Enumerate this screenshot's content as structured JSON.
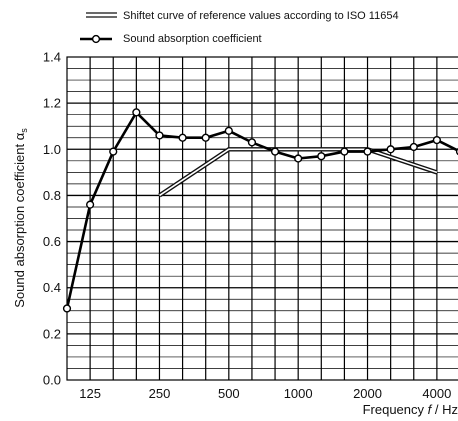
{
  "chart_data": {
    "type": "line",
    "title": "",
    "xlabel": "Frequency",
    "xlabel_symbol": "f",
    "xlabel_unit": " / Hz",
    "ylabel": "Sound absorption coefficient α",
    "ylabel_sub": "s",
    "ylim": [
      0,
      1.4
    ],
    "yticks": [
      "0.0",
      "0.2",
      "0.4",
      "0.6",
      "0.8",
      "1.0",
      "1.2",
      "1.4"
    ],
    "x_scale": "log (third-octave bands)",
    "x_categories": [
      "100",
      "125",
      "160",
      "200",
      "250",
      "315",
      "400",
      "500",
      "630",
      "800",
      "1000",
      "1250",
      "1600",
      "2000",
      "2500",
      "3150",
      "4000",
      "5000"
    ],
    "xticks": [
      "125",
      "250",
      "500",
      "1000",
      "2000",
      "4000"
    ],
    "grid": true,
    "legend_position": "top-left",
    "series": [
      {
        "name": "Shiftet curve of reference values according to ISO 11654",
        "style": "double-line",
        "color": "#111111",
        "x": [
          "250",
          "500",
          "1000",
          "2000",
          "4000"
        ],
        "values": [
          0.8,
          1.0,
          1.0,
          1.0,
          0.9
        ]
      },
      {
        "name": "Sound absorption coefficient",
        "style": "thick line with open circle markers",
        "color": "#000000",
        "x": [
          "100",
          "125",
          "160",
          "200",
          "250",
          "315",
          "400",
          "500",
          "630",
          "800",
          "1000",
          "1250",
          "1600",
          "2000",
          "2500",
          "3150",
          "4000",
          "5000"
        ],
        "values": [
          0.31,
          0.76,
          0.99,
          1.16,
          1.06,
          1.05,
          1.05,
          1.08,
          1.03,
          0.99,
          0.96,
          0.97,
          0.99,
          0.99,
          1.0,
          1.01,
          1.04,
          0.99
        ]
      }
    ]
  }
}
